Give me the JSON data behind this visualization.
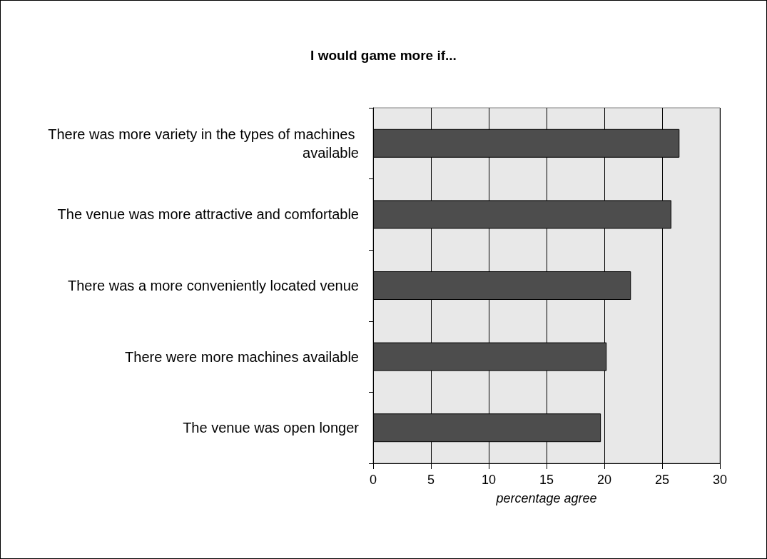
{
  "chart_data": {
    "type": "bar",
    "orientation": "horizontal",
    "title": "I would game more if...",
    "xlabel": "percentage agree",
    "categories": [
      "There was more variety in the types of machines available",
      "The venue was more attractive and comfortable",
      "There was a more conveniently located venue",
      "There were more machines available",
      "The venue was open longer"
    ],
    "values": [
      26.5,
      25.8,
      22.3,
      20.2,
      19.7
    ],
    "color": "#4d4d4d",
    "xlim": [
      0,
      30
    ],
    "xticks": [
      0,
      5,
      10,
      15,
      20,
      25,
      30
    ],
    "grid": "x"
  }
}
